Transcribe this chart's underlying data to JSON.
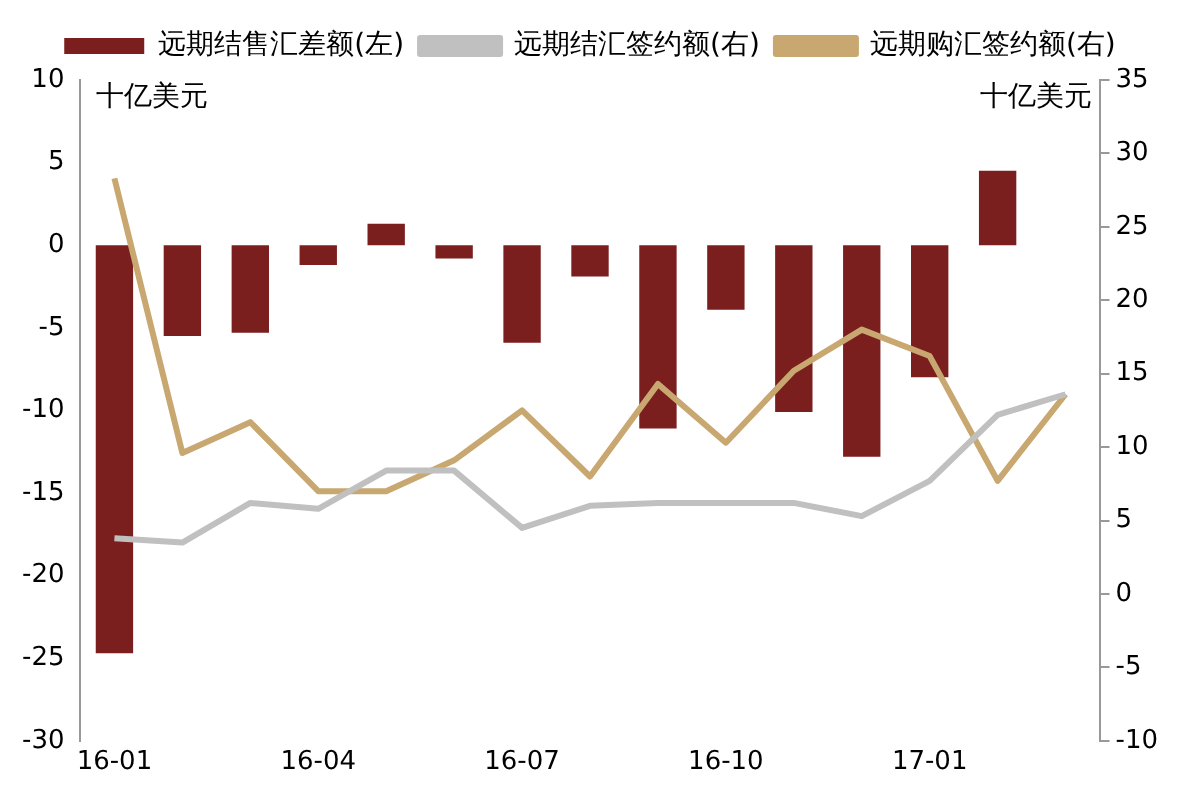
{
  "chart_data": {
    "type": "bar",
    "ylabel": "十亿美元",
    "y2label": "十亿美元",
    "categories": [
      "16-01",
      null,
      null,
      "16-04",
      null,
      null,
      "16-07",
      null,
      null,
      "16-10",
      null,
      null,
      "17-01",
      null,
      null
    ],
    "series": [
      {
        "name": "远期结售汇差额(左)",
        "color": "#7b1e1e",
        "values": [
          -24.7,
          -5.5,
          -5.3,
          -1.2,
          1.3,
          -0.8,
          -5.9,
          -1.9,
          -11.1,
          -3.9,
          -10.1,
          -12.8,
          -8,
          4.5,
          null
        ]
      },
      {
        "name": "远期结汇签约额(右)",
        "type": "line",
        "axis": "y2",
        "color": "#c0c0c0",
        "values": [
          3.8,
          3.5,
          6.2,
          5.8,
          8.4,
          8.4,
          4.5,
          6,
          6.2,
          6.2,
          6.2,
          5.3,
          7.7,
          12.2,
          13.6
        ]
      },
      {
        "name": "远期购汇签约额(右)",
        "type": "line",
        "axis": "y2",
        "color": "#c8a870",
        "values": [
          28.3,
          9.6,
          11.7,
          7,
          7,
          9.1,
          12.5,
          8,
          14.3,
          10.3,
          15.2,
          18,
          16.2,
          7.7,
          13.6
        ]
      }
    ],
    "ylim": [
      -30,
      10
    ],
    "yticks": [
      -30,
      -25,
      -20,
      -15,
      -10,
      -5,
      0,
      5,
      10
    ],
    "y2lim": [
      -10,
      35
    ],
    "y2ticks": [
      -10,
      -5,
      0,
      5,
      10,
      15,
      20,
      25,
      30,
      35
    ],
    "grid": false,
    "legend": "top",
    "marker": "none",
    "line_style": "solid"
  }
}
